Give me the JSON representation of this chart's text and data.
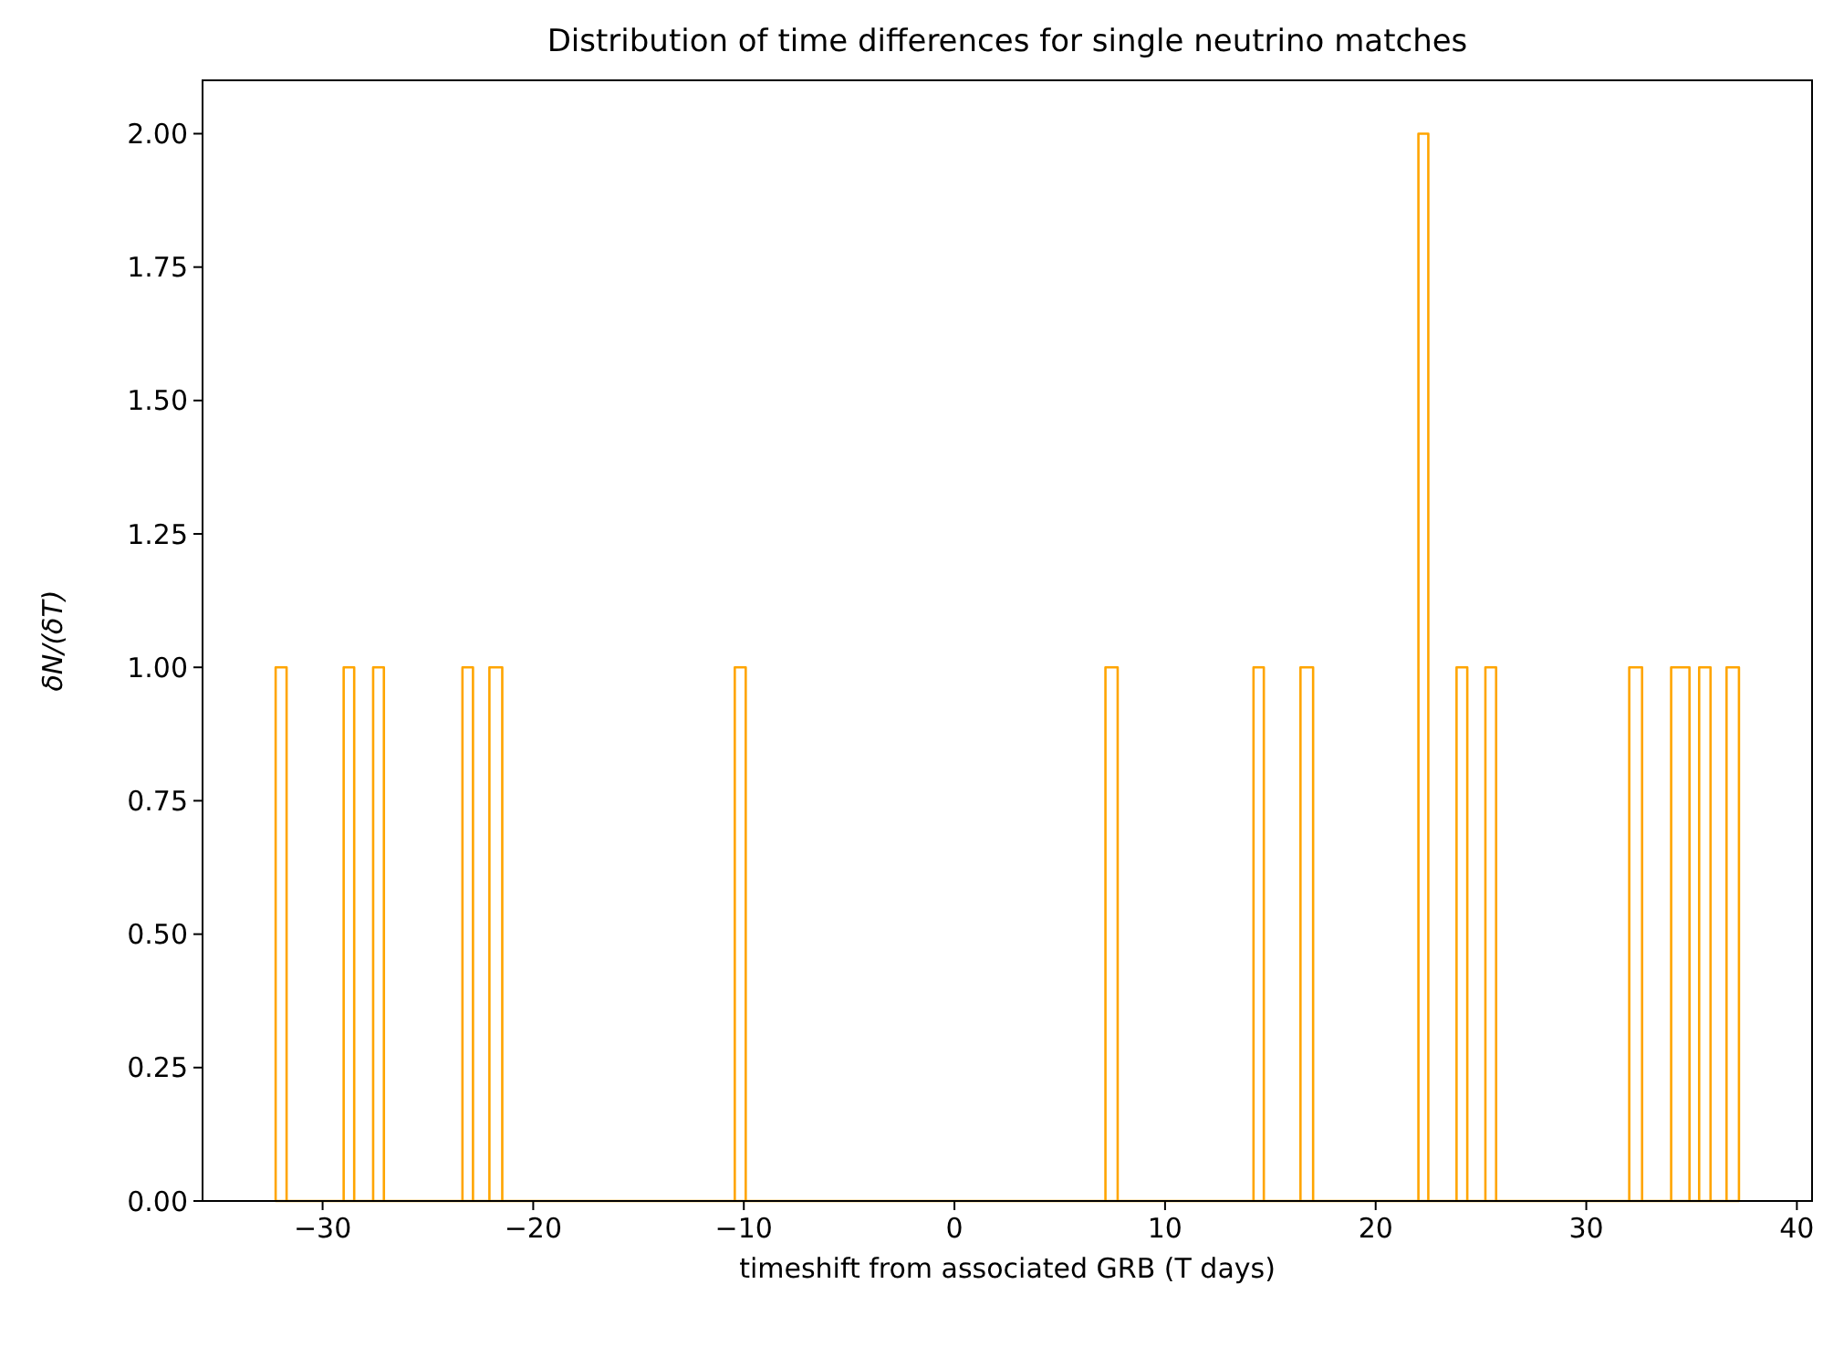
{
  "chart_data": {
    "type": "histogram",
    "title": "Distribution of time differences for single neutrino matches",
    "xlabel": "timeshift from associated GRB (T days)",
    "ylabel": "δN/(δT)",
    "color": "#ffa500",
    "bins": [
      -32.23,
      -31.71,
      -29.0,
      -28.5,
      -27.6,
      -27.09,
      -23.36,
      -22.86,
      -22.08,
      -21.47,
      -10.43,
      -9.91,
      7.17,
      7.75,
      14.2,
      14.69,
      16.43,
      17.03,
      22.03,
      22.5,
      23.84,
      24.35,
      25.21,
      25.72,
      32.04,
      32.65,
      34.03,
      34.9,
      35.36,
      35.9,
      36.66,
      37.25
    ],
    "values": [
      1,
      0,
      1,
      0,
      1,
      0,
      1,
      0,
      1,
      0,
      1,
      0,
      1,
      0,
      1,
      0,
      1,
      0,
      2,
      0,
      1,
      0,
      1,
      0,
      1,
      0,
      1,
      0,
      1,
      0,
      1
    ],
    "xlim": [
      -35.7,
      40.72
    ],
    "ylim": [
      0,
      2.1
    ],
    "xticks": [
      {
        "value": -30,
        "label": "−30"
      },
      {
        "value": -20,
        "label": "−20"
      },
      {
        "value": -10,
        "label": "−10"
      },
      0,
      10,
      20,
      30,
      40
    ],
    "yticks": [
      {
        "value": 0,
        "label": "0.00"
      },
      {
        "value": 0.25,
        "label": "0.25"
      },
      {
        "value": 0.5,
        "label": "0.50"
      },
      {
        "value": 0.75,
        "label": "0.75"
      },
      {
        "value": 1,
        "label": "1.00"
      },
      {
        "value": 1.25,
        "label": "1.25"
      },
      {
        "value": 1.5,
        "label": "1.50"
      },
      {
        "value": 1.75,
        "label": "1.75"
      },
      {
        "value": 2,
        "label": "2.00"
      }
    ],
    "grid": false
  }
}
